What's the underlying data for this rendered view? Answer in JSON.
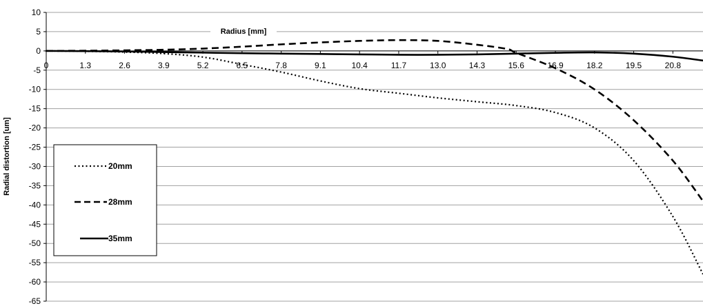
{
  "chart_data": {
    "type": "line",
    "xlabel": "Radius [mm]",
    "ylabel": "Radial distortion [um]",
    "xlim": [
      0,
      21.8
    ],
    "ylim": [
      -65,
      10
    ],
    "x_ticks": [
      "0",
      "1.3",
      "2.6",
      "3.9",
      "5.2",
      "6.5",
      "7.8",
      "9.1",
      "10.4",
      "11.7",
      "13.0",
      "14.3",
      "15.6",
      "16.9",
      "18.2",
      "19.5",
      "20.8"
    ],
    "y_ticks": [
      "10",
      "5",
      "0",
      "-5",
      "-10",
      "-15",
      "-20",
      "-25",
      "-30",
      "-35",
      "-40",
      "-45",
      "-50",
      "-55",
      "-60",
      "-65"
    ],
    "grid": "horizontal",
    "legend_position": "left",
    "series": [
      {
        "name": "20mm",
        "style": "dotted",
        "x": [
          0,
          1.3,
          2.6,
          3.9,
          5.2,
          6.5,
          7.8,
          9.1,
          10.4,
          11.7,
          13.0,
          14.3,
          15.6,
          16.9,
          18.2,
          19.5,
          20.8,
          21.8
        ],
        "y": [
          0,
          -0.1,
          -0.3,
          -0.7,
          -1.6,
          -3.5,
          -5.5,
          -7.8,
          -9.8,
          -11.0,
          -12.2,
          -13.2,
          -14.2,
          -16.0,
          -20.0,
          -28.5,
          -43.0,
          -58.0
        ]
      },
      {
        "name": "28mm",
        "style": "dashed",
        "x": [
          0,
          1.3,
          2.6,
          3.9,
          5.2,
          6.5,
          7.8,
          9.1,
          10.4,
          11.7,
          13.0,
          14.3,
          15.3,
          15.6,
          16.9,
          18.2,
          19.5,
          20.8,
          21.8
        ],
        "y": [
          0,
          0.05,
          0.15,
          0.3,
          0.6,
          1.1,
          1.7,
          2.2,
          2.6,
          2.8,
          2.6,
          1.6,
          0.5,
          -0.5,
          -4.5,
          -10.0,
          -18.0,
          -28.5,
          -39.0
        ]
      },
      {
        "name": "35mm",
        "style": "solid",
        "x": [
          0,
          1.3,
          2.6,
          3.9,
          5.2,
          6.5,
          7.8,
          9.1,
          10.4,
          11.7,
          13.0,
          14.3,
          15.6,
          16.9,
          18.2,
          19.5,
          20.8,
          21.8
        ],
        "y": [
          0,
          -0.05,
          -0.15,
          -0.3,
          -0.45,
          -0.6,
          -0.7,
          -0.8,
          -0.9,
          -1.0,
          -1.0,
          -0.9,
          -0.7,
          -0.5,
          -0.4,
          -0.7,
          -1.5,
          -2.5
        ]
      }
    ]
  }
}
